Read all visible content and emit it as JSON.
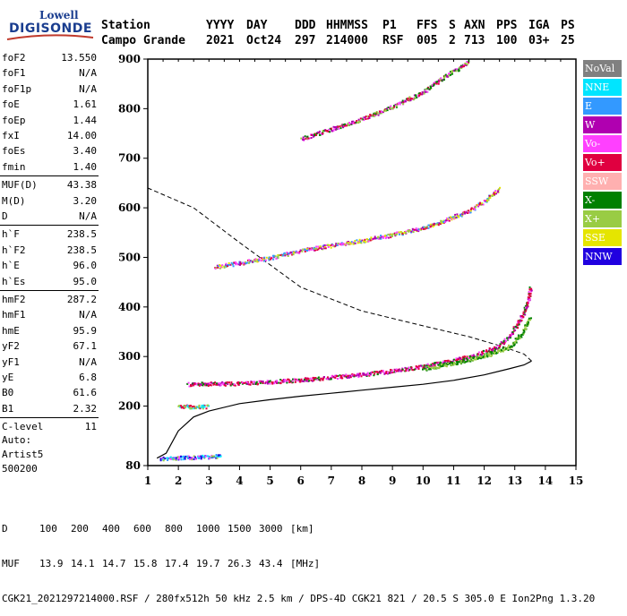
{
  "logo": {
    "line1": "Lowell",
    "line2": "DIGISONDE"
  },
  "header": {
    "row1": [
      "Station",
      "YYYY",
      "DAY",
      "DDD",
      "HHMMSS",
      "P1",
      "FFS",
      "S",
      "AXN",
      "PPS",
      "IGA",
      "PS"
    ],
    "row2": [
      "Campo Grande",
      "2021",
      "Oct24",
      "297",
      "214000",
      "RSF",
      "005",
      "2",
      "713",
      "100",
      "03+",
      "25"
    ]
  },
  "params": [
    {
      "k": "foF2",
      "v": "13.550"
    },
    {
      "k": "foF1",
      "v": "N/A"
    },
    {
      "k": "foF1p",
      "v": "N/A"
    },
    {
      "k": "foE",
      "v": "1.61"
    },
    {
      "k": "foEp",
      "v": "1.44"
    },
    {
      "k": "fxI",
      "v": "14.00"
    },
    {
      "k": "foEs",
      "v": "3.40"
    },
    {
      "k": "fmin",
      "v": "1.40"
    },
    {
      "k": "MUF(D)",
      "v": "43.38"
    },
    {
      "k": "M(D)",
      "v": "3.20"
    },
    {
      "k": "D",
      "v": "N/A"
    },
    {
      "k": "h`F",
      "v": "238.5"
    },
    {
      "k": "h`F2",
      "v": "238.5"
    },
    {
      "k": "h`E",
      "v": "96.0"
    },
    {
      "k": "h`Es",
      "v": "95.0"
    },
    {
      "k": "hmF2",
      "v": "287.2"
    },
    {
      "k": "hmF1",
      "v": "N/A"
    },
    {
      "k": "hmE",
      "v": "95.9"
    },
    {
      "k": "yF2",
      "v": "67.1"
    },
    {
      "k": "yF1",
      "v": "N/A"
    },
    {
      "k": "yE",
      "v": "6.8"
    },
    {
      "k": "B0",
      "v": "61.6"
    },
    {
      "k": "B1",
      "v": "2.32"
    },
    {
      "k": "C-level",
      "v": "11"
    }
  ],
  "auto": {
    "line1": "Auto:",
    "line2": "Artist5",
    "line3": "500200"
  },
  "legend": [
    {
      "label": "NoVal",
      "color": "#808080"
    },
    {
      "label": "NNE",
      "color": "#00e5ff"
    },
    {
      "label": "E",
      "color": "#3399ff"
    },
    {
      "label": "W",
      "color": "#b000b0"
    },
    {
      "label": "Vo-",
      "color": "#ff40ff"
    },
    {
      "label": "Vo+",
      "color": "#e00040"
    },
    {
      "label": "SSW",
      "color": "#ffb0b0"
    },
    {
      "label": "X-",
      "color": "#008000"
    },
    {
      "label": "X+",
      "color": "#99cc44"
    },
    {
      "label": "SSE",
      "color": "#e5e500"
    },
    {
      "label": "NNW",
      "color": "#2000e0"
    }
  ],
  "footer": {
    "row1_label": "D",
    "row1_values": [
      "100",
      "200",
      "400",
      "600",
      "800",
      "1000",
      "1500",
      "3000"
    ],
    "row1_unit": "[km]",
    "row2_label": "MUF",
    "row2_values": [
      "13.9",
      "14.1",
      "14.7",
      "15.8",
      "17.4",
      "19.7",
      "26.3",
      "43.4"
    ],
    "row2_unit": "[MHz]",
    "row3": "CGK21_2021297214000.RSF / 280fx512h 50 kHz 2.5 km / DPS-4D CGK21 821 / 20.5 S 305.0 E Ion2Png 1.3.20"
  },
  "chart_data": {
    "type": "scatter",
    "xlim": [
      1,
      15
    ],
    "ylim": [
      80,
      900
    ],
    "xticks": [
      "1",
      "2",
      "3",
      "4",
      "5",
      "6",
      "7",
      "8",
      "9",
      "10",
      "11",
      "12",
      "13",
      "14",
      "15"
    ],
    "yticks": [
      "80",
      "200",
      "300",
      "400",
      "500",
      "600",
      "700",
      "800",
      "900"
    ],
    "profile_solid": [
      [
        1.3,
        95
      ],
      [
        1.6,
        105
      ],
      [
        2.0,
        150
      ],
      [
        2.5,
        178
      ],
      [
        3.0,
        190
      ],
      [
        4.0,
        205
      ],
      [
        5.0,
        213
      ],
      [
        6.0,
        220
      ],
      [
        7.0,
        226
      ],
      [
        8.0,
        232
      ],
      [
        9.0,
        238
      ],
      [
        10.0,
        244
      ],
      [
        11.0,
        252
      ],
      [
        12.0,
        263
      ],
      [
        12.8,
        275
      ],
      [
        13.3,
        283
      ],
      [
        13.55,
        291
      ]
    ],
    "profile_dashed": [
      [
        13.55,
        291
      ],
      [
        13.3,
        305
      ],
      [
        12.6,
        320
      ],
      [
        11.5,
        340
      ],
      [
        10.0,
        362
      ],
      [
        8.0,
        392
      ],
      [
        6.0,
        440
      ],
      [
        4.0,
        530
      ],
      [
        2.5,
        600
      ],
      [
        1.0,
        640
      ]
    ],
    "traces": [
      {
        "name": "E",
        "points": [
          [
            1.4,
            95
          ],
          [
            1.8,
            96
          ],
          [
            2.2,
            97
          ],
          [
            2.6,
            98
          ],
          [
            3.0,
            99
          ],
          [
            3.4,
            101
          ]
        ]
      },
      {
        "name": "F2-O",
        "points": [
          [
            2.3,
            245
          ],
          [
            3.0,
            246
          ],
          [
            4.0,
            247
          ],
          [
            5.0,
            250
          ],
          [
            6.0,
            254
          ],
          [
            7.0,
            259
          ],
          [
            8.0,
            265
          ],
          [
            9.0,
            272
          ],
          [
            10.0,
            281
          ],
          [
            11.0,
            293
          ],
          [
            11.8,
            306
          ],
          [
            12.4,
            320
          ],
          [
            12.8,
            340
          ],
          [
            13.0,
            360
          ],
          [
            13.2,
            380
          ],
          [
            13.35,
            400
          ],
          [
            13.45,
            420
          ],
          [
            13.5,
            440
          ]
        ]
      },
      {
        "name": "F2-X",
        "points": [
          [
            10.0,
            276
          ],
          [
            11.0,
            288
          ],
          [
            12.0,
            302
          ],
          [
            12.8,
            320
          ],
          [
            13.2,
            345
          ],
          [
            13.5,
            380
          ]
        ]
      },
      {
        "name": "2F",
        "points": [
          [
            3.2,
            482
          ],
          [
            4.0,
            490
          ],
          [
            5.0,
            500
          ],
          [
            6.0,
            515
          ],
          [
            7.0,
            525
          ],
          [
            8.0,
            535
          ],
          [
            9.0,
            547
          ],
          [
            10.0,
            560
          ],
          [
            10.8,
            578
          ],
          [
            11.5,
            595
          ],
          [
            12.0,
            615
          ],
          [
            12.5,
            640
          ]
        ]
      },
      {
        "name": "3F",
        "points": [
          [
            6.0,
            740
          ],
          [
            7.0,
            760
          ],
          [
            8.0,
            780
          ],
          [
            9.0,
            805
          ],
          [
            10.0,
            835
          ],
          [
            10.8,
            870
          ],
          [
            11.5,
            895
          ]
        ]
      },
      {
        "name": "Es",
        "points": [
          [
            2.0,
            200
          ],
          [
            2.5,
            200
          ],
          [
            3.0,
            200
          ]
        ]
      }
    ]
  }
}
